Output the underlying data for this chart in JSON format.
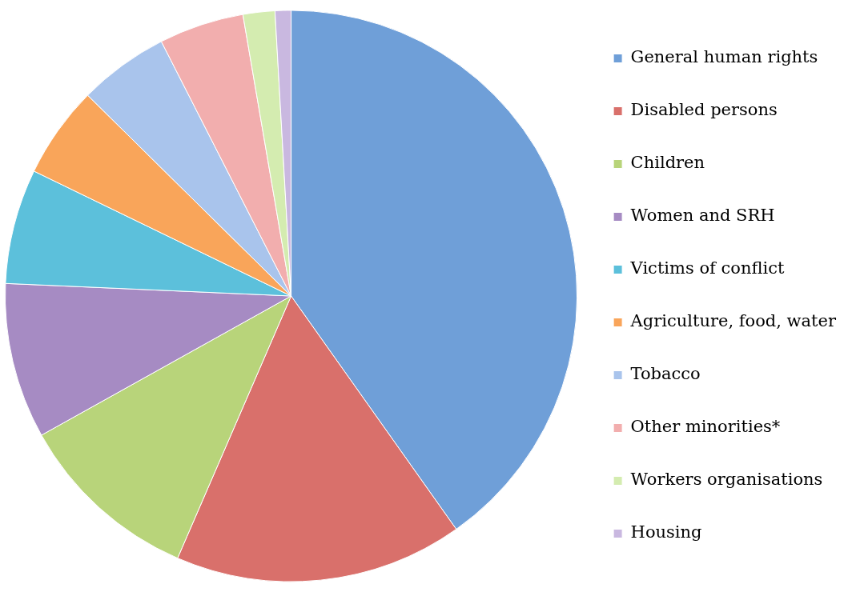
{
  "chart_data": {
    "type": "pie",
    "categories": [
      "General human rights",
      "Disabled persons",
      "Children",
      "Women and SRH",
      "Victims of conflict",
      "Agriculture, food, water",
      "Tobacco",
      "Other minorities*",
      "Workers organisations",
      "Housing"
    ],
    "values": [
      40.2,
      16.3,
      10.4,
      8.8,
      6.5,
      5.2,
      5.1,
      4.8,
      1.8,
      0.9
    ],
    "colors": [
      "#6f9fd8",
      "#d9706b",
      "#b8d47a",
      "#a68bc3",
      "#5cc0db",
      "#f9a55a",
      "#a9c4ec",
      "#f2aeae",
      "#d4ecb0",
      "#c9b8e0"
    ],
    "legend": "right"
  }
}
